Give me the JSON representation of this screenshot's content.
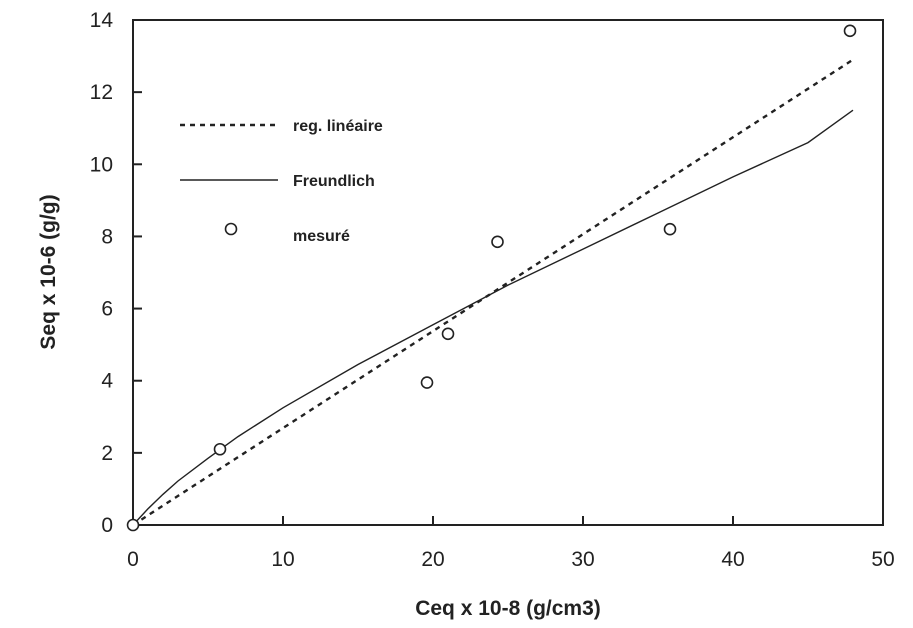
{
  "chart_data": {
    "type": "scatter",
    "title": "",
    "xlabel": "Ceq x 10-8 (g/cm3)",
    "ylabel": "Seq x 10-6 (g/g)",
    "xlim": [
      0,
      50
    ],
    "ylim": [
      0,
      14
    ],
    "x_ticks": [
      "0",
      "10",
      "20",
      "30",
      "40",
      "50"
    ],
    "y_ticks": [
      "0",
      "2",
      "4",
      "6",
      "8",
      "10",
      "12",
      "14"
    ],
    "grid": false,
    "legend_position": "upper-left (inside plot)",
    "series": [
      {
        "name": "reg. linéaire",
        "style": "dotted-line",
        "points": [
          [
            0,
            0
          ],
          [
            48,
            12.9
          ]
        ]
      },
      {
        "name": "Freundlich",
        "style": "solid-line",
        "points": [
          [
            0,
            0
          ],
          [
            1,
            0.45
          ],
          [
            2,
            0.85
          ],
          [
            3,
            1.22
          ],
          [
            5,
            1.85
          ],
          [
            7,
            2.45
          ],
          [
            10,
            3.25
          ],
          [
            15,
            4.45
          ],
          [
            20,
            5.55
          ],
          [
            25,
            6.65
          ],
          [
            30,
            7.65
          ],
          [
            35,
            8.65
          ],
          [
            40,
            9.65
          ],
          [
            45,
            10.6
          ],
          [
            48,
            11.5
          ]
        ]
      },
      {
        "name": "mesuré",
        "style": "open-circle-markers",
        "points": [
          [
            0,
            0
          ],
          [
            5.8,
            2.1
          ],
          [
            19.6,
            3.95
          ],
          [
            21.0,
            5.3
          ],
          [
            24.3,
            7.85
          ],
          [
            35.8,
            8.2
          ],
          [
            47.8,
            13.7
          ]
        ]
      }
    ]
  }
}
